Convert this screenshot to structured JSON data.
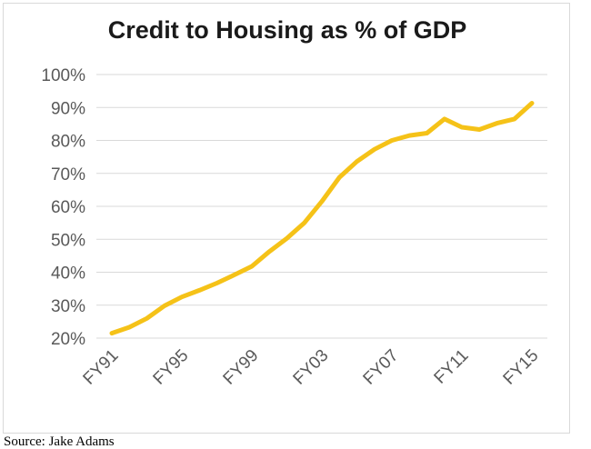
{
  "source_note": "Source: Jake Adams",
  "chart_data": {
    "type": "line",
    "title": "Credit to Housing as % of GDP",
    "xlabel": "",
    "ylabel": "",
    "ylim": [
      20,
      100
    ],
    "yticks": [
      "20%",
      "30%",
      "40%",
      "50%",
      "60%",
      "70%",
      "80%",
      "90%",
      "100%"
    ],
    "grid": true,
    "legend": "none",
    "x_tick_labels": [
      "FY91",
      "FY95",
      "FY99",
      "FY03",
      "FY07",
      "FY11",
      "FY15"
    ],
    "categories": [
      "FY91",
      "FY92",
      "FY93",
      "FY94",
      "FY95",
      "FY96",
      "FY97",
      "FY98",
      "FY99",
      "FY00",
      "FY01",
      "FY02",
      "FY03",
      "FY04",
      "FY05",
      "FY06",
      "FY07",
      "FY08",
      "FY09",
      "FY10",
      "FY11",
      "FY12",
      "FY13",
      "FY14",
      "FY15"
    ],
    "series": [
      {
        "color": "#f5c218",
        "values": [
          21.5,
          23.3,
          26.0,
          29.8,
          32.5,
          34.5,
          36.7,
          39.2,
          41.8,
          46.3,
          50.3,
          55.0,
          61.5,
          68.8,
          73.6,
          77.3,
          80.0,
          81.5,
          82.2,
          86.5,
          84.0,
          83.3,
          85.2,
          86.5,
          91.3
        ]
      }
    ]
  }
}
